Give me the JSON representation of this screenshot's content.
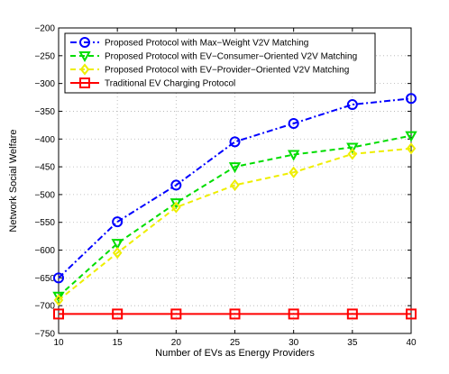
{
  "chart_data": {
    "type": "line",
    "title": "",
    "xlabel": "Number of EVs as Energy Providers",
    "ylabel": "Network Social Welfare",
    "x": [
      10,
      15,
      20,
      25,
      30,
      35,
      40
    ],
    "xlim": [
      10,
      40
    ],
    "ylim": [
      -750,
      -200
    ],
    "xticks": [
      "10",
      "15",
      "20",
      "25",
      "30",
      "35",
      "40"
    ],
    "yticks": [
      "-200",
      "-250",
      "-300",
      "-350",
      "-400",
      "-450",
      "-500",
      "-550",
      "-600",
      "-650",
      "-700",
      "-750"
    ],
    "grid": true,
    "legend_position": "top-left",
    "series": [
      {
        "name": "Proposed Protocol with Max−Weight V2V Matching",
        "values": [
          -650,
          -549,
          -483,
          -405,
          -372,
          -338,
          -327
        ],
        "color": "#0000ff",
        "marker": "circle",
        "line_style": "dash-dot"
      },
      {
        "name": "Proposed Protocol with EV−Consumer−Oriented V2V Matching",
        "values": [
          -683,
          -588,
          -515,
          -450,
          -428,
          -415,
          -394
        ],
        "color": "#00dd00",
        "marker": "triangle-down",
        "line_style": "dashed"
      },
      {
        "name": "Proposed Protocol with EV−Provider−Oriented V2V Matching",
        "values": [
          -690,
          -605,
          -523,
          -483,
          -460,
          -427,
          -417
        ],
        "color": "#eeee00",
        "marker": "diamond",
        "line_style": "dashed"
      },
      {
        "name": "Traditional EV Charging Protocol",
        "values": [
          -715,
          -715,
          -715,
          -715,
          -715,
          -715,
          -715
        ],
        "color": "#ff0000",
        "marker": "square",
        "line_style": "solid"
      }
    ]
  }
}
